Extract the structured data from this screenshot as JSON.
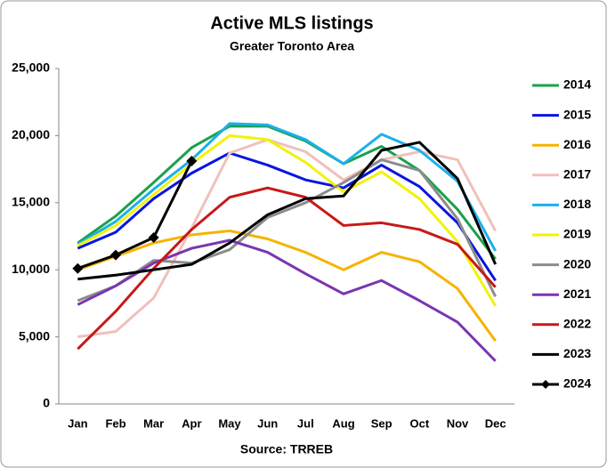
{
  "chart_data": {
    "type": "line",
    "title": "Active MLS listings",
    "subtitle": "Greater Toronto Area",
    "source": "Source: TRREB",
    "categories": [
      "Jan",
      "Feb",
      "Mar",
      "Apr",
      "May",
      "Jun",
      "Jul",
      "Aug",
      "Sep",
      "Oct",
      "Nov",
      "Dec"
    ],
    "ylim": [
      0,
      25000
    ],
    "yticks": [
      0,
      {
        "value": 5000,
        "label": "5,000"
      },
      {
        "value": 10000,
        "label": "10,000"
      },
      {
        "value": 15000,
        "label": "15,000"
      },
      {
        "value": 20000,
        "label": "20,000"
      },
      {
        "value": 25000,
        "label": "25,000"
      }
    ],
    "grid": false,
    "legend": "right",
    "series": [
      {
        "name": "2014",
        "color": "#1aa14a",
        "values": [
          12000,
          14000,
          16500,
          19100,
          20700,
          20700,
          19600,
          17900,
          19200,
          17400,
          14500,
          10800
        ]
      },
      {
        "name": "2015",
        "color": "#0a14e0",
        "values": [
          11600,
          12800,
          15300,
          17200,
          18700,
          17800,
          16700,
          16100,
          17800,
          16200,
          13500,
          9200
        ]
      },
      {
        "name": "2016",
        "color": "#f5b301",
        "values": [
          10000,
          11000,
          12000,
          12600,
          12900,
          12300,
          11300,
          10000,
          11300,
          10600,
          8600,
          4700
        ]
      },
      {
        "name": "2017",
        "color": "#f0c0bc",
        "values": [
          5000,
          5400,
          7900,
          13100,
          18700,
          19700,
          18800,
          16700,
          18200,
          18800,
          18200,
          12900
        ]
      },
      {
        "name": "2018",
        "color": "#1cb0ea",
        "values": [
          11900,
          13600,
          16000,
          18200,
          20900,
          20800,
          19700,
          17900,
          20100,
          18900,
          16600,
          11400
        ]
      },
      {
        "name": "2019",
        "color": "#f2f20a",
        "values": [
          11800,
          13300,
          15600,
          17900,
          20000,
          19700,
          18000,
          15800,
          17300,
          15300,
          12100,
          7300
        ]
      },
      {
        "name": "2020",
        "color": "#8c8c8c",
        "values": [
          7700,
          8800,
          10700,
          10500,
          11500,
          13900,
          15000,
          16500,
          18200,
          17400,
          13800,
          8000
        ]
      },
      {
        "name": "2021",
        "color": "#7a35b0",
        "values": [
          7400,
          8800,
          10500,
          11600,
          12200,
          11300,
          9700,
          8200,
          9200,
          7700,
          6100,
          3200
        ]
      },
      {
        "name": "2022",
        "color": "#c81818",
        "values": [
          4100,
          6900,
          10100,
          13000,
          15400,
          16100,
          15400,
          13300,
          13500,
          13000,
          11900,
          8700
        ]
      },
      {
        "name": "2023",
        "color": "#000000",
        "values": [
          9300,
          9600,
          10000,
          10400,
          12000,
          14100,
          15300,
          15500,
          18900,
          19500,
          16800,
          10400
        ]
      },
      {
        "name": "2024",
        "color": "#000000",
        "marker": "diamond",
        "values": [
          10100,
          11100,
          12400,
          18100,
          null,
          null,
          null,
          null,
          null,
          null,
          null,
          null
        ]
      }
    ]
  }
}
